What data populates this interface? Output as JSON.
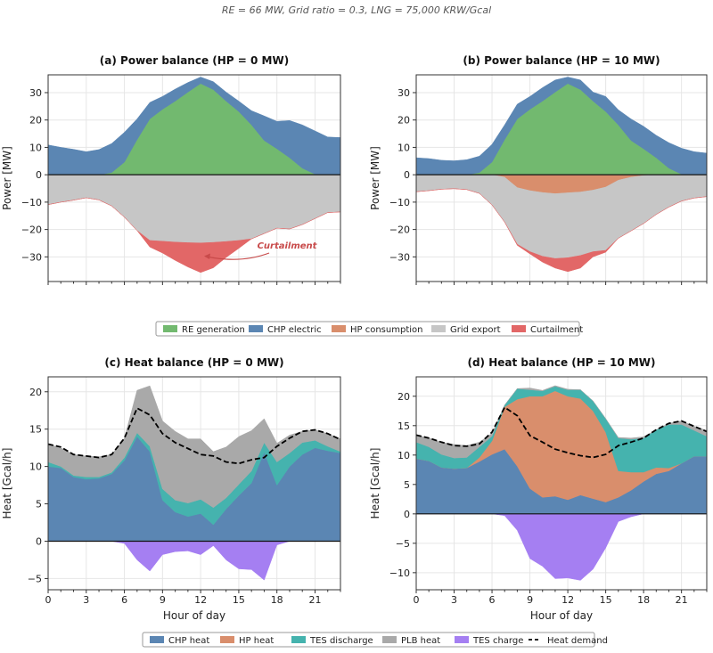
{
  "suptitle": "RE = 66 MW,  Grid ratio = 0.3,  LNG = 75,000 KRW/Gcal",
  "legends": {
    "power": [
      {
        "label": "RE generation",
        "color": "#72b96f"
      },
      {
        "label": "CHP electric",
        "color": "#5b86b3"
      },
      {
        "label": "HP consumption",
        "color": "#d98e6c"
      },
      {
        "label": "Grid export",
        "color": "#c6c6c6"
      },
      {
        "label": "Curtailment",
        "color": "#e26767"
      }
    ],
    "heat": [
      {
        "label": "CHP heat",
        "color": "#5b86b3"
      },
      {
        "label": "HP heat",
        "color": "#d98e6c"
      },
      {
        "label": "TES discharge",
        "color": "#45b3ae"
      },
      {
        "label": "PLB heat",
        "color": "#a9a9a9"
      },
      {
        "label": "TES charge",
        "color": "#a57ff2"
      },
      {
        "label": "Heat demand",
        "color": "#000000",
        "style": "dashed-line"
      }
    ]
  },
  "chart_data": [
    {
      "type": "area",
      "title": "(a) Power balance (HP = 0 MW)",
      "xlabel": "",
      "ylabel": "Power  [MW]",
      "xlim": [
        0,
        23
      ],
      "ylim": [
        -39,
        36.5
      ],
      "xticks": [
        0,
        3,
        6,
        9,
        12,
        15,
        18,
        21
      ],
      "xtick_labels_shown": false,
      "yticks": [
        -30,
        -20,
        -10,
        0,
        10,
        20,
        30
      ],
      "grid": true,
      "x": [
        0,
        1,
        2,
        3,
        4,
        5,
        6,
        7,
        8,
        9,
        10,
        11,
        12,
        13,
        14,
        15,
        16,
        17,
        18,
        19,
        20,
        21,
        22,
        23
      ],
      "series": [
        {
          "name": "RE generation",
          "values": [
            0,
            0,
            0,
            0,
            0,
            0.8,
            4.6,
            12.8,
            20.4,
            23.9,
            26.9,
            30.2,
            33.3,
            31.1,
            26.9,
            23.1,
            18.2,
            12.5,
            9.5,
            6.2,
            2.4,
            0.2,
            0,
            0
          ]
        },
        {
          "name": "CHP electric",
          "values": [
            10.9,
            10.0,
            9.3,
            8.4,
            9.2,
            10.6,
            10.9,
            7.6,
            6.0,
            4.7,
            4.4,
            3.5,
            2.4,
            2.9,
            3.3,
            3.8,
            5.2,
            9.0,
            10.0,
            13.6,
            15.8,
            15.8,
            13.8,
            13.6
          ]
        },
        {
          "name": "HP consumption",
          "values": [
            0,
            0,
            0,
            0,
            0,
            0,
            0,
            0,
            0,
            0,
            0,
            0,
            0,
            0,
            0,
            0,
            0,
            0,
            0,
            0,
            0,
            0,
            0,
            0
          ]
        },
        {
          "name": "Grid export",
          "values": [
            -10.9,
            -10.0,
            -9.3,
            -8.4,
            -9.2,
            -11.4,
            -15.5,
            -20.4,
            -24.0,
            -24.3,
            -24.6,
            -24.8,
            -24.9,
            -24.7,
            -24.4,
            -24.0,
            -23.4,
            -21.5,
            -19.5,
            -19.8,
            -18.2,
            -16.0,
            -13.8,
            -13.6
          ]
        },
        {
          "name": "Curtailment",
          "values": [
            0,
            0,
            0,
            0,
            0,
            0,
            0,
            0,
            -2.4,
            -4.3,
            -6.7,
            -8.9,
            -10.8,
            -9.3,
            -5.8,
            -2.9,
            0,
            0,
            0,
            0,
            0,
            0,
            0,
            0
          ]
        }
      ],
      "annotation": {
        "text": "Curtailment",
        "x": 12,
        "y": -31
      }
    },
    {
      "type": "area",
      "title": "(b) Power balance (HP = 10 MW)",
      "xlabel": "",
      "ylabel": "Power  [MW]",
      "xlim": [
        0,
        23
      ],
      "ylim": [
        -39,
        36.5
      ],
      "xticks": [
        0,
        3,
        6,
        9,
        12,
        15,
        18,
        21
      ],
      "xtick_labels_shown": false,
      "yticks": [
        -30,
        -20,
        -10,
        0,
        10,
        20,
        30
      ],
      "grid": true,
      "x": [
        0,
        1,
        2,
        3,
        4,
        5,
        6,
        7,
        8,
        9,
        10,
        11,
        12,
        13,
        14,
        15,
        16,
        17,
        18,
        19,
        20,
        21,
        22,
        23
      ],
      "series": [
        {
          "name": "RE generation",
          "values": [
            0,
            0,
            0,
            0,
            0,
            0.8,
            4.6,
            12.8,
            20.4,
            23.9,
            26.9,
            30.2,
            33.3,
            31.1,
            26.9,
            23.1,
            18.2,
            12.5,
            9.5,
            6.2,
            2.4,
            0.2,
            0,
            0
          ]
        },
        {
          "name": "CHP electric",
          "values": [
            6.2,
            5.9,
            5.3,
            5.1,
            5.5,
            6.0,
            6.5,
            5.4,
            5.4,
            4.7,
            4.9,
            4.4,
            2.4,
            3.5,
            3.3,
            5.5,
            5.5,
            7.9,
            8.2,
            8.2,
            9.3,
            9.5,
            8.4,
            7.9
          ]
        },
        {
          "name": "HP consumption",
          "values": [
            0,
            0,
            0,
            0,
            0,
            0,
            0,
            -0.9,
            -4.7,
            -5.8,
            -6.5,
            -6.9,
            -6.6,
            -6.3,
            -5.6,
            -4.5,
            -2.0,
            -0.9,
            -0.3,
            0,
            0,
            0,
            0,
            0
          ]
        },
        {
          "name": "Grid export",
          "values": [
            -6.2,
            -5.8,
            -5.3,
            -5.1,
            -5.4,
            -6.8,
            -11.0,
            -16.4,
            -20.7,
            -22.3,
            -23.3,
            -23.7,
            -23.7,
            -23.2,
            -22.5,
            -23.1,
            -21.2,
            -19.6,
            -17.5,
            -14.5,
            -11.8,
            -9.6,
            -8.5,
            -8.0
          ]
        },
        {
          "name": "Curtailment",
          "values": [
            0,
            0,
            0,
            0,
            0,
            0,
            0,
            0,
            -0.4,
            -0.8,
            -2.1,
            -3.5,
            -5.1,
            -4.6,
            -1.9,
            -0.7,
            0,
            0,
            0,
            0,
            0,
            0,
            0,
            0
          ]
        }
      ]
    },
    {
      "type": "area",
      "title": "(c) Heat balance (HP = 0 MW)",
      "xlabel": "Hour of day",
      "ylabel": "Heat  [Gcal/h]",
      "xlim": [
        0,
        23
      ],
      "ylim": [
        -6.5,
        22
      ],
      "xticks": [
        0,
        3,
        6,
        9,
        12,
        15,
        18,
        21
      ],
      "yticks": [
        -5,
        0,
        5,
        10,
        15,
        20
      ],
      "grid": true,
      "x": [
        0,
        1,
        2,
        3,
        4,
        5,
        6,
        7,
        8,
        9,
        10,
        11,
        12,
        13,
        14,
        15,
        16,
        17,
        18,
        19,
        20,
        21,
        22,
        23
      ],
      "series": [
        {
          "name": "CHP heat",
          "values": [
            10.0,
            9.8,
            8.6,
            8.3,
            8.4,
            9.0,
            10.8,
            14.0,
            12.0,
            5.5,
            3.9,
            3.3,
            3.7,
            2.2,
            4.3,
            6.1,
            7.8,
            11.9,
            7.5,
            10.0,
            11.6,
            12.5,
            12.1,
            11.8
          ]
        },
        {
          "name": "HP heat",
          "values": [
            0,
            0,
            0,
            0,
            0,
            0,
            0,
            0,
            0,
            0,
            0,
            0,
            0,
            0,
            0,
            0,
            0,
            0,
            0,
            0,
            0,
            0,
            0,
            0
          ]
        },
        {
          "name": "TES discharge",
          "values": [
            0.6,
            0.2,
            0.2,
            0.3,
            0.2,
            0.2,
            0.4,
            0.5,
            0.7,
            1.5,
            1.6,
            1.8,
            1.9,
            2.3,
            1.5,
            1.5,
            1.6,
            1.3,
            3.1,
            1.8,
            1.6,
            1.0,
            0.6,
            0.2
          ]
        },
        {
          "name": "PLB heat",
          "values": [
            2.4,
            2.5,
            2.8,
            2.8,
            2.7,
            2.4,
            2.6,
            5.7,
            8.1,
            9.1,
            9.2,
            8.6,
            8.1,
            7.5,
            6.8,
            6.4,
            5.4,
            3.2,
            2.5,
            2.4,
            1.5,
            1.4,
            1.7,
            1.7
          ]
        },
        {
          "name": "TES charge",
          "values": [
            0,
            0,
            0,
            0,
            0,
            0,
            -0.3,
            -2.5,
            -4.0,
            -1.8,
            -1.4,
            -1.3,
            -1.8,
            -0.6,
            -2.5,
            -3.7,
            -3.8,
            -5.2,
            -0.5,
            0,
            0,
            0,
            0,
            0
          ]
        }
      ],
      "line": {
        "name": "Heat demand",
        "values": [
          13.0,
          12.6,
          11.6,
          11.4,
          11.2,
          11.6,
          13.8,
          17.8,
          16.9,
          14.4,
          13.2,
          12.4,
          11.6,
          11.4,
          10.6,
          10.4,
          10.9,
          11.2,
          12.7,
          13.8,
          14.7,
          14.9,
          14.4,
          13.6
        ]
      }
    },
    {
      "type": "area",
      "title": "(d) Heat balance (HP = 10 MW)",
      "xlabel": "Hour of day",
      "ylabel": "Heat  [Gcal/h]",
      "xlim": [
        0,
        23
      ],
      "ylim": [
        -12.9,
        23.3
      ],
      "xticks": [
        0,
        3,
        6,
        9,
        12,
        15,
        18,
        21
      ],
      "yticks": [
        -10,
        -5,
        0,
        5,
        10,
        15,
        20
      ],
      "grid": true,
      "x": [
        0,
        1,
        2,
        3,
        4,
        5,
        6,
        7,
        8,
        9,
        10,
        11,
        12,
        13,
        14,
        15,
        16,
        17,
        18,
        19,
        20,
        21,
        22,
        23
      ],
      "series": [
        {
          "name": "CHP heat",
          "values": [
            9.4,
            9.0,
            7.9,
            7.7,
            7.8,
            8.9,
            10.1,
            11.0,
            8.1,
            4.3,
            2.8,
            3.0,
            2.4,
            3.2,
            2.6,
            2.0,
            2.8,
            4.0,
            5.5,
            6.8,
            7.3,
            8.6,
            9.8,
            9.8
          ]
        },
        {
          "name": "HP heat",
          "values": [
            0,
            0,
            0,
            0,
            0,
            0.7,
            2.3,
            7.2,
            11.4,
            15.7,
            17.2,
            17.9,
            17.6,
            16.4,
            14.9,
            11.9,
            4.5,
            3.1,
            1.6,
            1.1,
            0.5,
            0,
            0,
            0
          ]
        },
        {
          "name": "TES discharge",
          "values": [
            2.8,
            2.4,
            2.2,
            1.8,
            1.8,
            1.8,
            0.8,
            0.3,
            1.8,
            1.1,
            0.9,
            0.8,
            1.1,
            1.5,
            1.7,
            2.3,
            5.6,
            5.6,
            5.8,
            6.4,
            7.4,
            6.6,
            4.4,
            3.4
          ]
        },
        {
          "name": "PLB heat",
          "values": [
            1.2,
            1.5,
            2.1,
            2.3,
            2.0,
            0.8,
            0.5,
            0,
            0,
            0.3,
            0.1,
            0.1,
            0.1,
            0,
            0,
            0,
            0.1,
            0.2,
            0.2,
            0,
            0.2,
            0.6,
            0.7,
            1.0
          ]
        },
        {
          "name": "TES charge",
          "values": [
            0,
            0,
            0,
            0,
            0,
            0,
            0,
            -0.3,
            -2.8,
            -7.6,
            -8.9,
            -11.0,
            -10.9,
            -11.3,
            -9.4,
            -5.8,
            -1.3,
            -0.5,
            0,
            0,
            0,
            0,
            0,
            0
          ]
        }
      ],
      "line": {
        "name": "Heat demand",
        "values": [
          13.4,
          12.9,
          12.2,
          11.6,
          11.5,
          11.9,
          13.9,
          18.1,
          16.7,
          13.3,
          12.2,
          11.0,
          10.4,
          9.9,
          9.6,
          10.1,
          11.6,
          12.2,
          12.9,
          14.3,
          15.4,
          15.8,
          14.9,
          14.0
        ]
      }
    }
  ]
}
